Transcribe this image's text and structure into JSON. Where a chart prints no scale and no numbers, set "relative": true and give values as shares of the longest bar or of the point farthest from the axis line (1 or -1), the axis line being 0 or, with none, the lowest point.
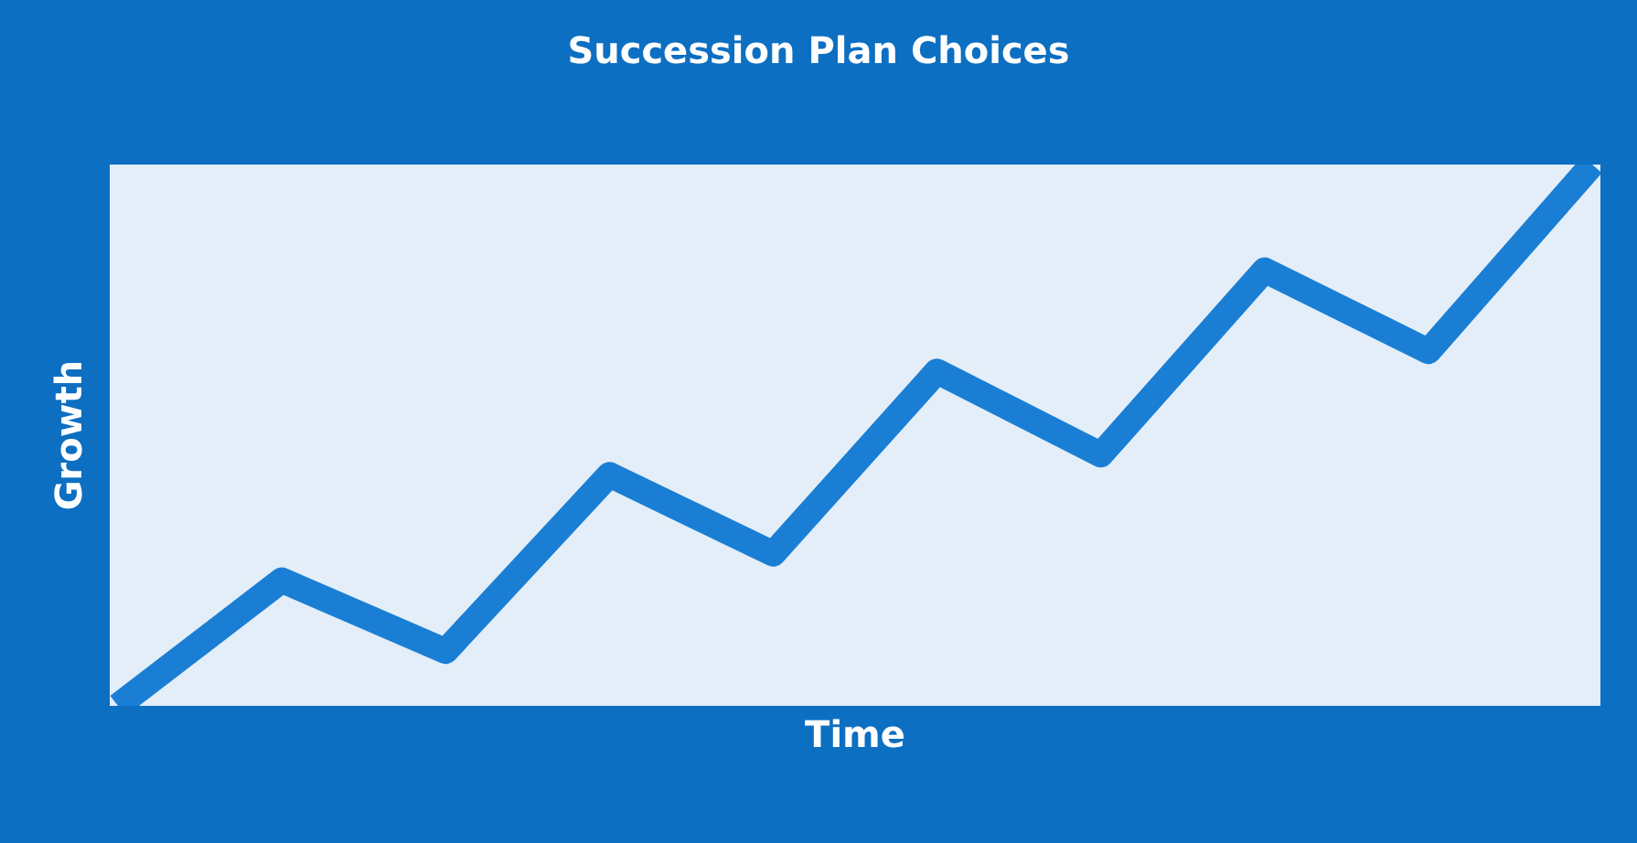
{
  "chart_data": {
    "type": "line",
    "title": "Succession Plan Choices",
    "xlabel": "Time",
    "ylabel": "Growth",
    "relative": true,
    "categories": [
      null,
      null,
      null,
      null,
      null,
      null,
      null,
      null,
      null,
      null
    ],
    "series": [
      {
        "color": "#1a7fd4",
        "values": [
          0,
          0.232,
          0.101,
          0.427,
          0.281,
          0.618,
          0.464,
          0.805,
          0.655,
          1
        ]
      }
    ],
    "marker": "none",
    "line_style": "solid"
  }
}
